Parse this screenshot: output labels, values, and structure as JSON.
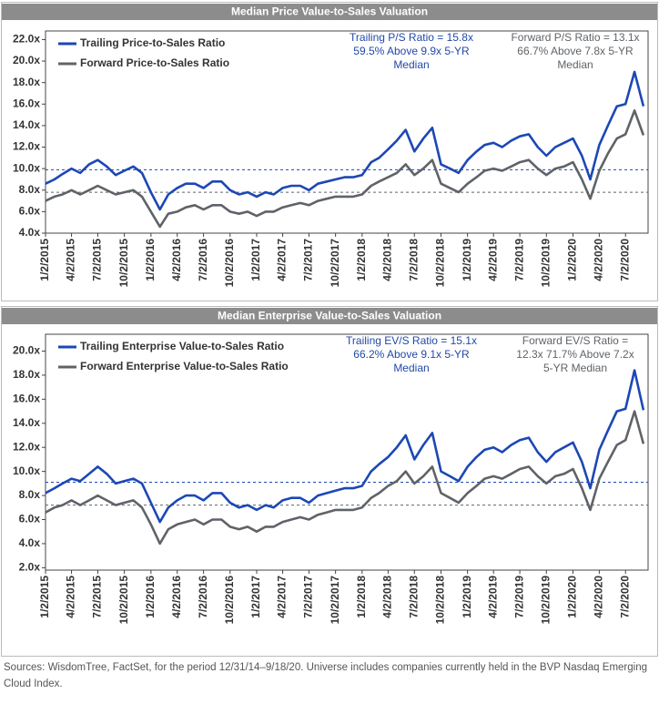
{
  "chart_data": [
    {
      "type": "line",
      "title": "Median Price Value-to-Sales Valuation",
      "x": [
        "1/2/2015",
        "2/2/2015",
        "3/2/2015",
        "4/2/2015",
        "5/2/2015",
        "6/2/2015",
        "7/2/2015",
        "8/2/2015",
        "9/2/2015",
        "10/2/2015",
        "11/2/2015",
        "12/2/2015",
        "1/2/2016",
        "2/2/2016",
        "3/2/2016",
        "4/2/2016",
        "5/2/2016",
        "6/2/2016",
        "7/2/2016",
        "8/2/2016",
        "9/2/2016",
        "10/2/2016",
        "11/2/2016",
        "12/2/2016",
        "1/2/2017",
        "2/2/2017",
        "3/2/2017",
        "4/2/2017",
        "5/2/2017",
        "6/2/2017",
        "7/2/2017",
        "8/2/2017",
        "9/2/2017",
        "10/2/2017",
        "11/2/2017",
        "12/2/2017",
        "1/2/2018",
        "2/2/2018",
        "3/2/2018",
        "4/2/2018",
        "5/2/2018",
        "6/2/2018",
        "7/2/2018",
        "8/2/2018",
        "9/2/2018",
        "10/2/2018",
        "11/2/2018",
        "12/2/2018",
        "1/2/2019",
        "2/2/2019",
        "3/2/2019",
        "4/2/2019",
        "5/2/2019",
        "6/2/2019",
        "7/2/2019",
        "8/2/2019",
        "9/2/2019",
        "10/2/2019",
        "11/2/2019",
        "12/2/2019",
        "1/2/2020",
        "2/2/2020",
        "3/2/2020",
        "4/2/2020",
        "5/2/2020",
        "6/2/2020",
        "7/2/2020",
        "8/2/2020",
        "9/2/2020"
      ],
      "series": [
        {
          "name": "Trailing Price-to-Sales Ratio",
          "color": "#1c47b5",
          "values": [
            8.6,
            9.0,
            9.5,
            10.0,
            9.6,
            10.4,
            10.8,
            10.2,
            9.4,
            9.8,
            10.2,
            9.6,
            7.8,
            6.2,
            7.6,
            8.2,
            8.6,
            8.6,
            8.2,
            8.8,
            8.8,
            8.0,
            7.6,
            7.8,
            7.4,
            7.8,
            7.6,
            8.2,
            8.4,
            8.4,
            8.0,
            8.6,
            8.8,
            9.0,
            9.2,
            9.2,
            9.4,
            10.6,
            11.0,
            11.8,
            12.6,
            13.6,
            11.6,
            12.8,
            13.8,
            10.4,
            10.0,
            9.6,
            10.8,
            11.6,
            12.2,
            12.4,
            12.0,
            12.6,
            13.0,
            13.2,
            12.0,
            11.2,
            12.0,
            12.4,
            12.8,
            11.2,
            9.0,
            12.2,
            14.0,
            15.8,
            16.0,
            19.0,
            15.8
          ]
        },
        {
          "name": "Forward Price-to-Sales Ratio",
          "color": "#5f6368",
          "values": [
            7.0,
            7.4,
            7.6,
            8.0,
            7.6,
            8.0,
            8.4,
            8.0,
            7.6,
            7.8,
            8.0,
            7.4,
            6.0,
            4.6,
            5.8,
            6.0,
            6.4,
            6.6,
            6.2,
            6.6,
            6.6,
            6.0,
            5.8,
            6.0,
            5.6,
            6.0,
            6.0,
            6.4,
            6.6,
            6.8,
            6.6,
            7.0,
            7.2,
            7.4,
            7.4,
            7.4,
            7.6,
            8.4,
            8.8,
            9.2,
            9.6,
            10.4,
            9.4,
            10.0,
            10.8,
            8.6,
            8.2,
            7.8,
            8.6,
            9.2,
            9.8,
            10.0,
            9.8,
            10.2,
            10.6,
            10.8,
            10.0,
            9.4,
            10.0,
            10.2,
            10.6,
            9.0,
            7.2,
            9.8,
            11.4,
            12.8,
            13.2,
            15.4,
            13.1
          ]
        }
      ],
      "reference_lines": [
        {
          "value": 9.9,
          "color": "#1c47b5"
        },
        {
          "value": 7.8,
          "color": "#5f6368"
        }
      ],
      "annotations": [
        {
          "color": "#2249a8",
          "lines": [
            "Trailing P/S Ratio = 15.8x",
            "59.5% Above 9.9x 5-YR",
            "Median"
          ]
        },
        {
          "color": "#5f6368",
          "lines": [
            "Forward P/S Ratio = 13.1x",
            "66.7% Above 7.8x 5-YR",
            "Median"
          ]
        }
      ],
      "xlim": [
        "1/2/2015",
        "9/18/2020"
      ],
      "xticks": [
        "1/2/2015",
        "4/2/2015",
        "7/2/2015",
        "10/2/2015",
        "1/2/2016",
        "4/2/2016",
        "7/2/2016",
        "10/2/2016",
        "1/2/2017",
        "4/2/2017",
        "7/2/2017",
        "10/2/2017",
        "1/2/2018",
        "4/2/2018",
        "7/2/2018",
        "10/2/2018",
        "1/2/2019",
        "4/2/2019",
        "7/2/2019",
        "10/2/2019",
        "1/2/2020",
        "4/2/2020",
        "7/2/2020"
      ],
      "ylim": [
        4,
        22.8
      ],
      "yticks": [
        {
          "value": 4,
          "label": "4.0x"
        },
        {
          "value": 6,
          "label": "6.0x"
        },
        {
          "value": 8,
          "label": "8.0x"
        },
        {
          "value": 10,
          "label": "10.0x"
        },
        {
          "value": 12,
          "label": "12.0x"
        },
        {
          "value": 14,
          "label": "14.0x"
        },
        {
          "value": 16,
          "label": "16.0x"
        },
        {
          "value": 18,
          "label": "18.0x"
        },
        {
          "value": 20,
          "label": "20.0x"
        },
        {
          "value": 22,
          "label": "22.0x"
        }
      ],
      "legend": "upper left"
    },
    {
      "type": "line",
      "title": "Median Enterprise Value-to-Sales Valuation",
      "x": [
        "1/2/2015",
        "2/2/2015",
        "3/2/2015",
        "4/2/2015",
        "5/2/2015",
        "6/2/2015",
        "7/2/2015",
        "8/2/2015",
        "9/2/2015",
        "10/2/2015",
        "11/2/2015",
        "12/2/2015",
        "1/2/2016",
        "2/2/2016",
        "3/2/2016",
        "4/2/2016",
        "5/2/2016",
        "6/2/2016",
        "7/2/2016",
        "8/2/2016",
        "9/2/2016",
        "10/2/2016",
        "11/2/2016",
        "12/2/2016",
        "1/2/2017",
        "2/2/2017",
        "3/2/2017",
        "4/2/2017",
        "5/2/2017",
        "6/2/2017",
        "7/2/2017",
        "8/2/2017",
        "9/2/2017",
        "10/2/2017",
        "11/2/2017",
        "12/2/2017",
        "1/2/2018",
        "2/2/2018",
        "3/2/2018",
        "4/2/2018",
        "5/2/2018",
        "6/2/2018",
        "7/2/2018",
        "8/2/2018",
        "9/2/2018",
        "10/2/2018",
        "11/2/2018",
        "12/2/2018",
        "1/2/2019",
        "2/2/2019",
        "3/2/2019",
        "4/2/2019",
        "5/2/2019",
        "6/2/2019",
        "7/2/2019",
        "8/2/2019",
        "9/2/2019",
        "10/2/2019",
        "11/2/2019",
        "12/2/2019",
        "1/2/2020",
        "2/2/2020",
        "3/2/2020",
        "4/2/2020",
        "5/2/2020",
        "6/2/2020",
        "7/2/2020",
        "8/2/2020",
        "9/2/2020"
      ],
      "series": [
        {
          "name": "Trailing Enterprise Value-to-Sales Ratio",
          "color": "#1c47b5",
          "values": [
            8.2,
            8.6,
            9.0,
            9.4,
            9.2,
            9.8,
            10.4,
            9.8,
            9.0,
            9.2,
            9.4,
            9.0,
            7.4,
            5.8,
            7.0,
            7.6,
            8.0,
            8.0,
            7.6,
            8.2,
            8.2,
            7.4,
            7.0,
            7.2,
            6.8,
            7.2,
            7.0,
            7.6,
            7.8,
            7.8,
            7.4,
            8.0,
            8.2,
            8.4,
            8.6,
            8.6,
            8.8,
            10.0,
            10.6,
            11.2,
            12.0,
            13.0,
            11.0,
            12.2,
            13.2,
            10.0,
            9.6,
            9.2,
            10.4,
            11.2,
            11.8,
            12.0,
            11.6,
            12.2,
            12.6,
            12.8,
            11.6,
            10.8,
            11.6,
            12.0,
            12.4,
            10.8,
            8.6,
            11.8,
            13.4,
            15.0,
            15.2,
            18.4,
            15.1
          ]
        },
        {
          "name": "Forward Enterprise Value-to-Sales Ratio",
          "color": "#5f6368",
          "values": [
            6.6,
            7.0,
            7.2,
            7.6,
            7.2,
            7.6,
            8.0,
            7.6,
            7.2,
            7.4,
            7.6,
            7.0,
            5.6,
            4.0,
            5.2,
            5.6,
            5.8,
            6.0,
            5.6,
            6.0,
            6.0,
            5.4,
            5.2,
            5.4,
            5.0,
            5.4,
            5.4,
            5.8,
            6.0,
            6.2,
            6.0,
            6.4,
            6.6,
            6.8,
            6.8,
            6.8,
            7.0,
            7.8,
            8.2,
            8.8,
            9.2,
            10.0,
            9.0,
            9.6,
            10.4,
            8.2,
            7.8,
            7.4,
            8.2,
            8.8,
            9.4,
            9.6,
            9.4,
            9.8,
            10.2,
            10.4,
            9.6,
            9.0,
            9.6,
            9.8,
            10.2,
            8.6,
            6.8,
            9.4,
            10.8,
            12.2,
            12.6,
            15.0,
            12.3
          ]
        }
      ],
      "reference_lines": [
        {
          "value": 9.1,
          "color": "#1c47b5"
        },
        {
          "value": 7.2,
          "color": "#5f6368"
        }
      ],
      "annotations": [
        {
          "color": "#2249a8",
          "lines": [
            "Trailing  EV/S Ratio = 15.1x",
            "66.2% Above 9.1x 5-YR",
            "Median"
          ]
        },
        {
          "color": "#5f6368",
          "lines": [
            "Forward  EV/S Ratio =",
            "12.3x  71.7% Above 7.2x",
            "5-YR Median"
          ]
        }
      ],
      "xlim": [
        "1/2/2015",
        "9/18/2020"
      ],
      "xticks": [
        "1/2/2015",
        "4/2/2015",
        "7/2/2015",
        "10/2/2015",
        "1/2/2016",
        "4/2/2016",
        "7/2/2016",
        "10/2/2016",
        "1/2/2017",
        "4/2/2017",
        "7/2/2017",
        "10/2/2017",
        "1/2/2018",
        "4/2/2018",
        "7/2/2018",
        "10/2/2018",
        "1/2/2019",
        "4/2/2019",
        "7/2/2019",
        "10/2/2019",
        "1/2/2020",
        "4/2/2020",
        "7/2/2020"
      ],
      "ylim": [
        1.8,
        21.4
      ],
      "yticks": [
        {
          "value": 2,
          "label": "2.0x"
        },
        {
          "value": 4,
          "label": "4.0x"
        },
        {
          "value": 6,
          "label": "6.0x"
        },
        {
          "value": 8,
          "label": "8.0x"
        },
        {
          "value": 10,
          "label": "10.0x"
        },
        {
          "value": 12,
          "label": "12.0x"
        },
        {
          "value": 14,
          "label": "14.0x"
        },
        {
          "value": 16,
          "label": "16.0x"
        },
        {
          "value": 18,
          "label": "18.0x"
        },
        {
          "value": 20,
          "label": "20.0x"
        }
      ],
      "legend": "upper left"
    }
  ],
  "source": "Sources: WisdomTree, FactSet, for the period 12/31/14–9/18/20. Universe includes companies currently held in the BVP Nasdaq Emerging Cloud Index."
}
